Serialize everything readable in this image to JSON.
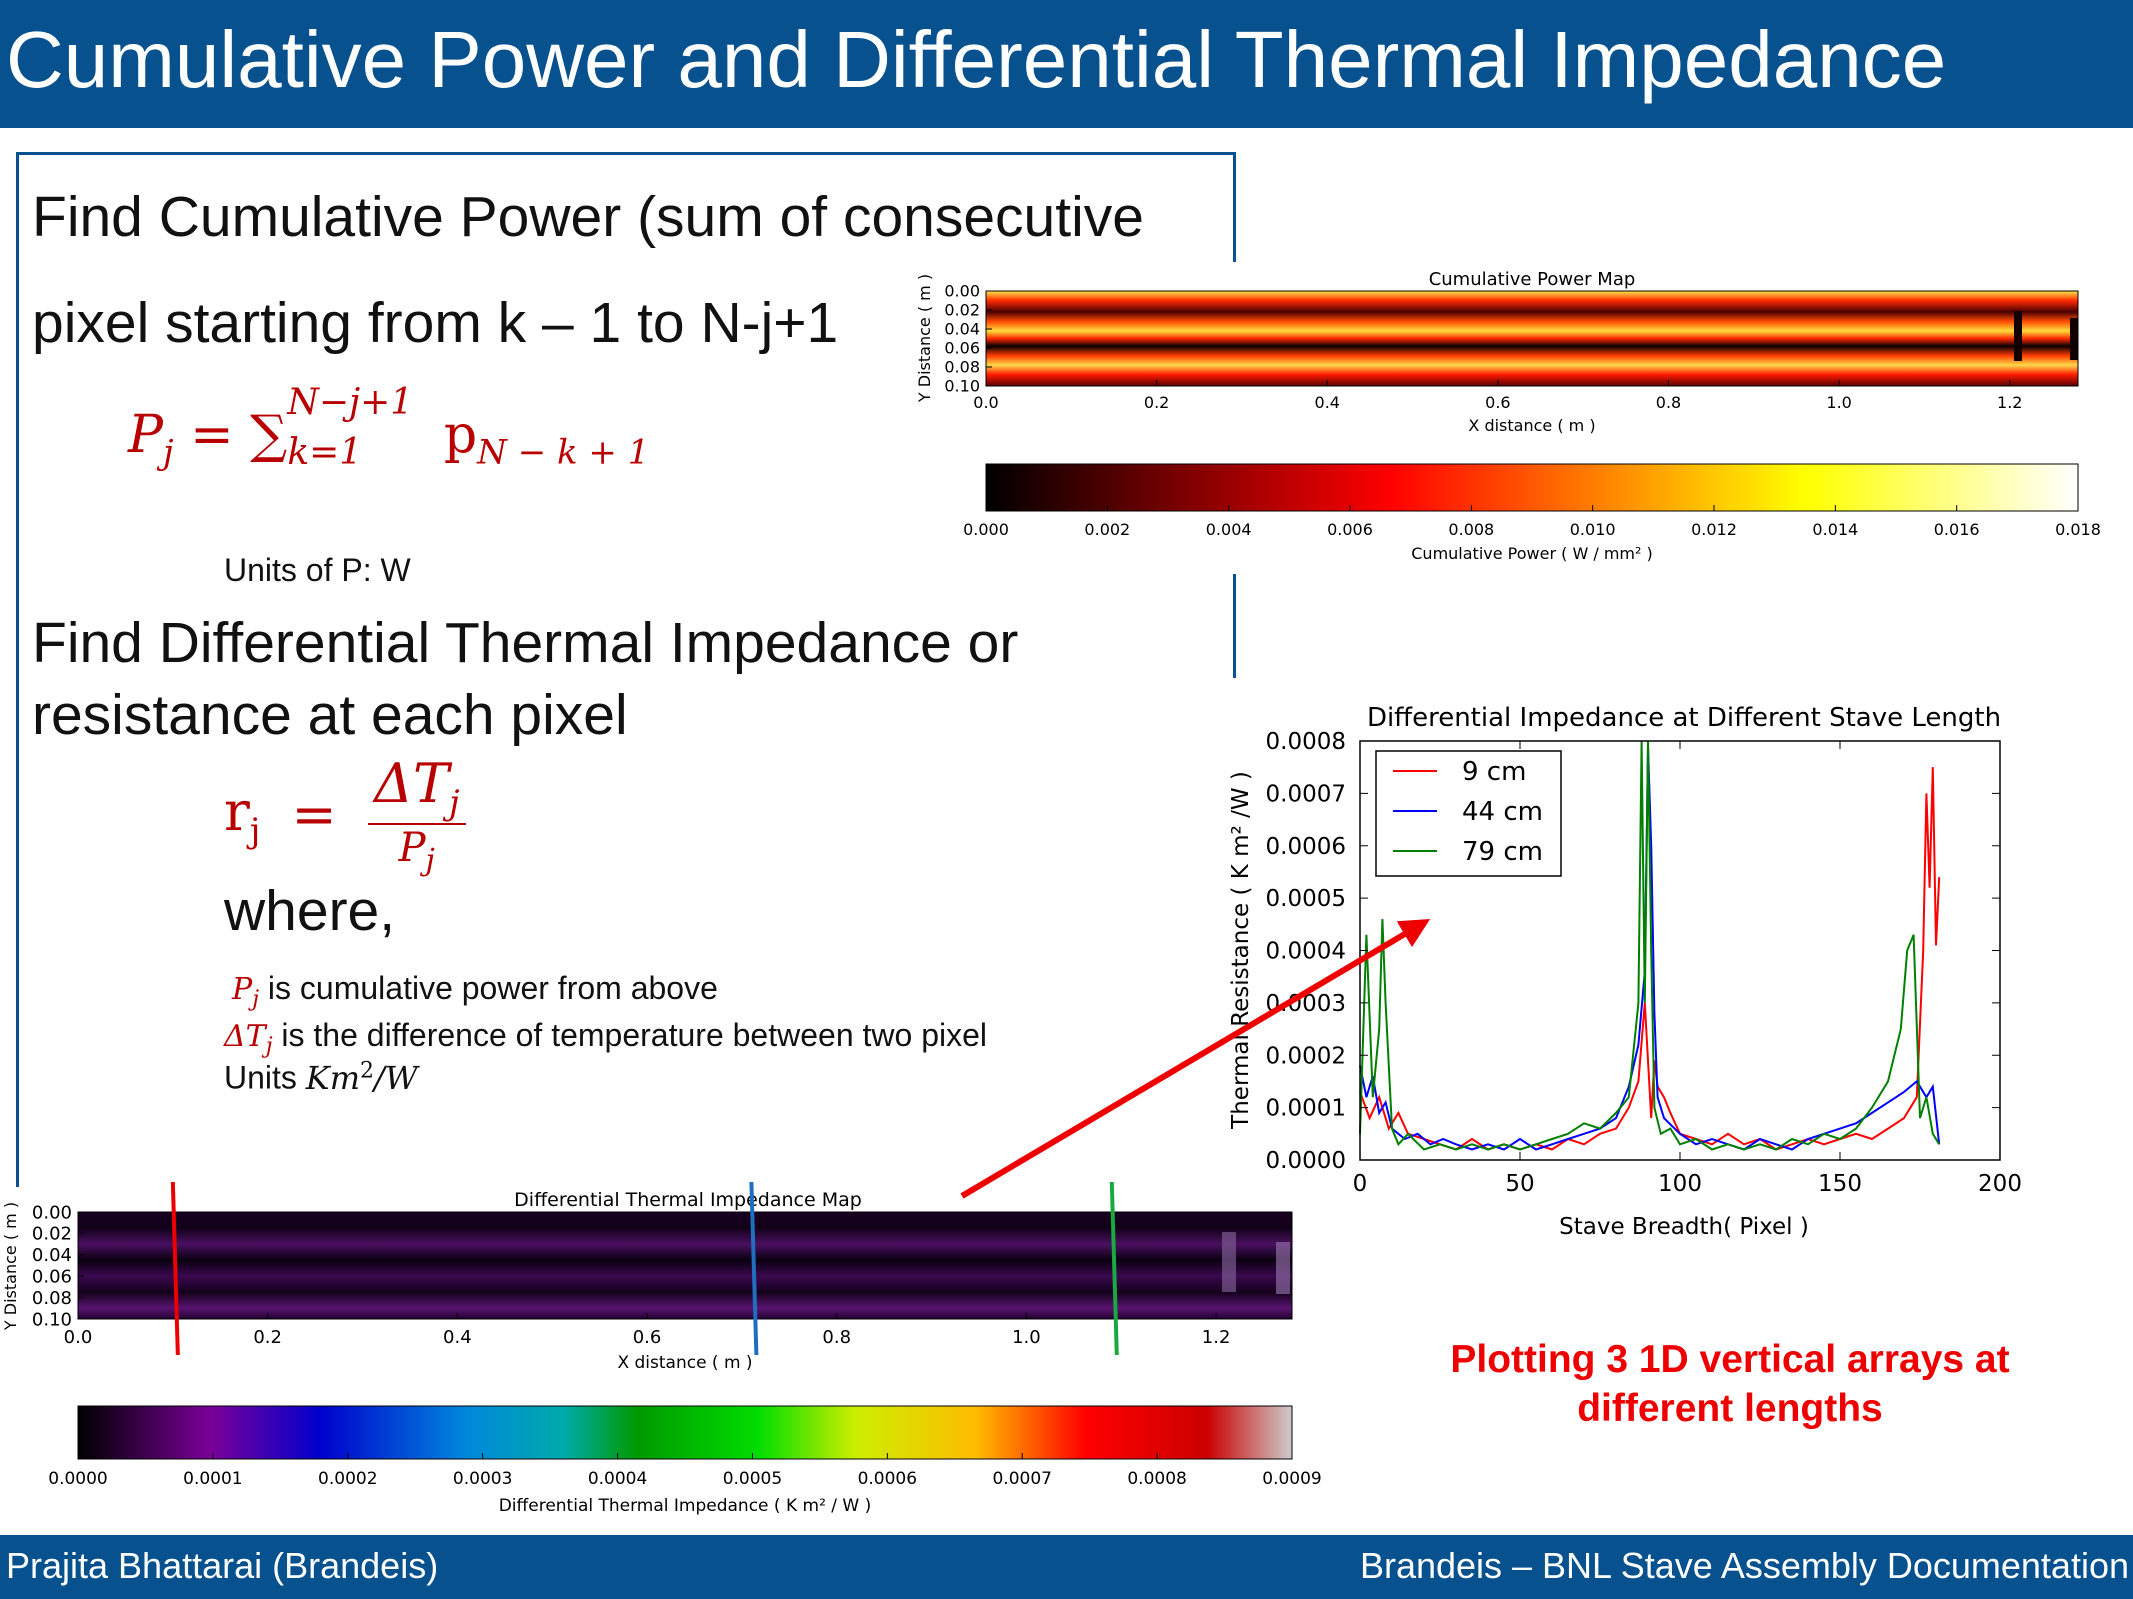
{
  "slide": {
    "title": "Cumulative Power and Differential Thermal Impedance",
    "footer_left": "Prajita Bhattarai (Brandeis)",
    "footer_right": "Brandeis – BNL Stave Assembly Documentation",
    "colors": {
      "bar": "#07518f",
      "formula": "#b80000",
      "note": "#ee0000",
      "arrow": "#ee0000"
    }
  },
  "text": {
    "line1": "Find Cumulative Power (sum of consecutive",
    "line2": "pixel starting from k – 1 to N-j+1",
    "units_p": "Units of P: W",
    "diff_line1": "Find Differential Thermal Impedance or",
    "diff_line2": "resistance at each pixel",
    "where": "where,",
    "pj_desc": "is cumulative power from above",
    "dt_desc": "is the difference of temperature between two pixel",
    "units_label": "Units",
    "note": "Plotting 3 1D vertical arrays at different lengths"
  },
  "formulas": {
    "p_lhs": "P",
    "p_lhs_sub": "j",
    "p_sum": "= ∑",
    "p_sum_sup": "N−j+1",
    "p_sum_sub": "k=1",
    "p_term": "p",
    "p_term_sub": "N − k + 1",
    "r_lhs": "r",
    "r_lhs_sub": "j",
    "r_eq": "=",
    "r_num": "ΔT",
    "r_num_sub": "j",
    "r_den": "P",
    "r_den_sub": "j",
    "pj": "P",
    "pj_sub": "j",
    "dt": "ΔT",
    "dt_sub": "j",
    "units_expr": "Km",
    "units_sup": "2",
    "units_tail": "/W"
  },
  "chart_data": [
    {
      "id": "cumulative-power-map",
      "type": "heatmap",
      "title": "Cumulative Power Map",
      "xlabel": "X distance ( m )",
      "ylabel": "Y Distance ( m )",
      "xlim": [
        0.0,
        1.28
      ],
      "ylim": [
        0.1,
        0.0
      ],
      "x_ticks": [
        "0.0",
        "0.2",
        "0.4",
        "0.6",
        "0.8",
        "1.0",
        "1.2"
      ],
      "y_ticks": [
        "0.00",
        "0.02",
        "0.04",
        "0.06",
        "0.08",
        "0.10"
      ],
      "colormap": "hot",
      "colorbar": {
        "label": "Cumulative Power ( W / mm² )",
        "min": 0.0,
        "max": 0.018,
        "ticks": [
          "0.000",
          "0.002",
          "0.004",
          "0.006",
          "0.008",
          "0.010",
          "0.012",
          "0.014",
          "0.016",
          "0.018"
        ]
      }
    },
    {
      "id": "differential-thermal-impedance-map",
      "type": "heatmap",
      "title": "Differential Thermal Impedance Map",
      "xlabel": "X distance ( m )",
      "ylabel": "Y Distance ( m )",
      "xlim": [
        0.0,
        1.28
      ],
      "ylim": [
        0.1,
        0.0
      ],
      "x_ticks": [
        "0.0",
        "0.2",
        "0.4",
        "0.6",
        "0.8",
        "1.0",
        "1.2"
      ],
      "y_ticks": [
        "0.00",
        "0.02",
        "0.04",
        "0.06",
        "0.08",
        "0.10"
      ],
      "colormap": "nipy_spectral",
      "marker_lines": [
        {
          "x": 0.1,
          "color": "#ee0000"
        },
        {
          "x": 0.71,
          "color": "#1f6fc0"
        },
        {
          "x": 1.09,
          "color": "#1aa840"
        }
      ],
      "colorbar": {
        "label": "Differential Thermal Impedance ( K m² / W )",
        "min": 0.0,
        "max": 0.0009,
        "ticks": [
          "0.0000",
          "0.0001",
          "0.0002",
          "0.0003",
          "0.0004",
          "0.0005",
          "0.0006",
          "0.0007",
          "0.0008",
          "0.0009"
        ]
      }
    },
    {
      "id": "differential-impedance-lines",
      "type": "line",
      "title": "Differential Impedance at Different Stave Length",
      "xlabel": "Stave Breadth( Pixel )",
      "ylabel": "Thermal Resistance ( K m² /W )",
      "xlim": [
        0,
        200
      ],
      "ylim": [
        0,
        0.0008
      ],
      "x_ticks": [
        "0",
        "50",
        "100",
        "150",
        "200"
      ],
      "y_ticks": [
        "0.0000",
        "0.0001",
        "0.0002",
        "0.0003",
        "0.0004",
        "0.0005",
        "0.0006",
        "0.0007",
        "0.0008"
      ],
      "legend": "top-left",
      "series": [
        {
          "name": "9 cm",
          "color": "#ff0000",
          "x": [
            0,
            3,
            6,
            9,
            12,
            15,
            20,
            25,
            30,
            35,
            40,
            45,
            50,
            55,
            60,
            65,
            70,
            75,
            80,
            84,
            87,
            89,
            91,
            92,
            93,
            95,
            97,
            100,
            105,
            110,
            115,
            120,
            125,
            130,
            135,
            140,
            145,
            150,
            155,
            160,
            165,
            170,
            174,
            176,
            177,
            178,
            179,
            180,
            181
          ],
          "y": [
            0.00013,
            8e-05,
            0.00012,
            6e-05,
            9e-05,
            5e-05,
            4e-05,
            3e-05,
            2e-05,
            4e-05,
            2e-05,
            3e-05,
            2e-05,
            3e-05,
            2e-05,
            4e-05,
            3e-05,
            5e-05,
            6e-05,
            0.0001,
            0.00015,
            0.0003,
            8e-05,
            0.00019,
            0.00014,
            0.00012,
            9e-05,
            5e-05,
            4e-05,
            3e-05,
            5e-05,
            3e-05,
            4e-05,
            2e-05,
            3e-05,
            4e-05,
            3e-05,
            4e-05,
            5e-05,
            4e-05,
            6e-05,
            8e-05,
            0.00012,
            0.0004,
            0.0007,
            0.00052,
            0.00075,
            0.00041,
            0.00054
          ]
        },
        {
          "name": "44 cm",
          "color": "#0000ff",
          "x": [
            0,
            2,
            4,
            6,
            8,
            10,
            14,
            18,
            22,
            26,
            30,
            35,
            40,
            45,
            50,
            55,
            60,
            65,
            70,
            75,
            80,
            84,
            87,
            89,
            90,
            91,
            92,
            93,
            95,
            100,
            105,
            110,
            115,
            120,
            125,
            130,
            135,
            140,
            145,
            150,
            155,
            160,
            165,
            170,
            174,
            177,
            179,
            181
          ],
          "y": [
            0.00018,
            0.00012,
            0.00016,
            9e-05,
            0.00011,
            6e-05,
            4e-05,
            5e-05,
            3e-05,
            4e-05,
            3e-05,
            2e-05,
            3e-05,
            2e-05,
            4e-05,
            2e-05,
            3e-05,
            4e-05,
            5e-05,
            6e-05,
            8e-05,
            0.00014,
            0.00022,
            0.00036,
            0.00079,
            0.0006,
            0.00028,
            0.00012,
            8e-05,
            5e-05,
            3e-05,
            4e-05,
            3e-05,
            2e-05,
            4e-05,
            3e-05,
            2e-05,
            4e-05,
            5e-05,
            6e-05,
            7e-05,
            9e-05,
            0.00011,
            0.00013,
            0.00015,
            0.00012,
            0.00014,
            3e-05
          ]
        },
        {
          "name": "79 cm",
          "color": "#008000",
          "x": [
            0,
            2,
            4,
            6,
            7,
            8,
            10,
            12,
            15,
            20,
            25,
            30,
            35,
            40,
            45,
            50,
            55,
            60,
            65,
            70,
            75,
            80,
            84,
            87,
            88,
            89,
            90,
            91,
            92,
            94,
            97,
            100,
            105,
            110,
            115,
            120,
            125,
            130,
            135,
            140,
            145,
            150,
            155,
            160,
            165,
            169,
            171,
            173,
            175,
            177,
            179,
            181
          ],
          "y": [
            5e-05,
            0.00043,
            0.00012,
            0.00025,
            0.00046,
            0.0003,
            6e-05,
            3e-05,
            5e-05,
            2e-05,
            3e-05,
            2e-05,
            3e-05,
            2e-05,
            3e-05,
            2e-05,
            3e-05,
            4e-05,
            5e-05,
            7e-05,
            6e-05,
            9e-05,
            0.00012,
            0.0003,
            0.0008,
            0.0003,
            0.0008,
            0.0004,
            0.0001,
            5e-05,
            6e-05,
            3e-05,
            4e-05,
            2e-05,
            3e-05,
            2e-05,
            3e-05,
            2e-05,
            4e-05,
            3e-05,
            5e-05,
            4e-05,
            6e-05,
            0.0001,
            0.00015,
            0.00025,
            0.0004,
            0.00043,
            8e-05,
            0.00012,
            5e-05,
            3e-05
          ]
        }
      ]
    }
  ]
}
